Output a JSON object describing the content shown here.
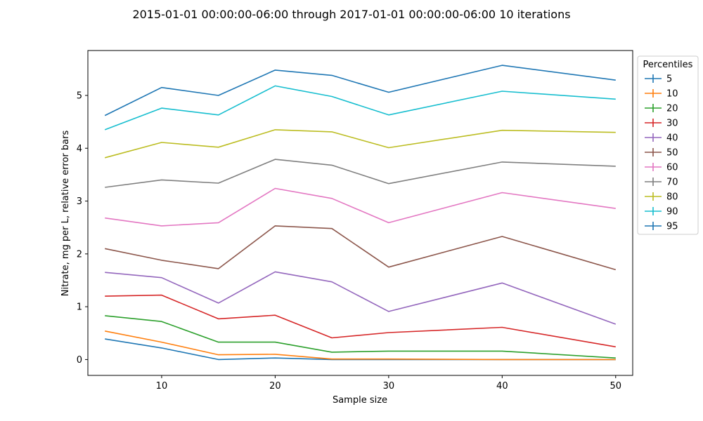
{
  "chart_data": {
    "type": "line",
    "title": "2015-01-01 00:00:00-06:00 through 2017-01-01 00:00:00-06:00 10 iterations",
    "xlabel": "Sample size",
    "ylabel": "Nitrate, mg per L, relative error bars",
    "x": [
      5,
      10,
      15,
      20,
      25,
      30,
      40,
      50
    ],
    "xlim": [
      3.5,
      51.5
    ],
    "ylim": [
      -0.3,
      5.85
    ],
    "x_ticks": [
      10,
      20,
      30,
      40,
      50
    ],
    "y_ticks": [
      0,
      1,
      2,
      3,
      4,
      5
    ],
    "grid": false,
    "legend": {
      "title": "Percentiles",
      "placement": "outside-right"
    },
    "series": [
      {
        "name": "5",
        "color": "#1f77b4",
        "values": [
          0.39,
          0.22,
          0.0,
          0.03,
          0.0,
          0.0,
          0.0,
          0.0
        ]
      },
      {
        "name": "10",
        "color": "#ff7f0e",
        "values": [
          0.54,
          0.33,
          0.09,
          0.1,
          0.01,
          0.01,
          0.0,
          0.0
        ]
      },
      {
        "name": "20",
        "color": "#2ca02c",
        "values": [
          0.83,
          0.72,
          0.33,
          0.33,
          0.14,
          0.16,
          0.16,
          0.03
        ]
      },
      {
        "name": "30",
        "color": "#d62728",
        "values": [
          1.2,
          1.22,
          0.77,
          0.84,
          0.41,
          0.51,
          0.61,
          0.24
        ]
      },
      {
        "name": "40",
        "color": "#9467bd",
        "values": [
          1.65,
          1.55,
          1.07,
          1.66,
          1.47,
          0.91,
          1.45,
          0.67
        ]
      },
      {
        "name": "50",
        "color": "#8c564b",
        "values": [
          2.1,
          1.88,
          1.72,
          2.53,
          2.48,
          1.75,
          2.33,
          1.7
        ]
      },
      {
        "name": "60",
        "color": "#e377c2",
        "values": [
          2.68,
          2.53,
          2.59,
          3.24,
          3.05,
          2.59,
          3.16,
          2.86
        ]
      },
      {
        "name": "70",
        "color": "#7f7f7f",
        "values": [
          3.26,
          3.4,
          3.34,
          3.79,
          3.68,
          3.33,
          3.74,
          3.66
        ]
      },
      {
        "name": "80",
        "color": "#bcbd22",
        "values": [
          3.82,
          4.11,
          4.02,
          4.35,
          4.31,
          4.01,
          4.34,
          4.3
        ]
      },
      {
        "name": "90",
        "color": "#17becf",
        "values": [
          4.35,
          4.76,
          4.63,
          5.18,
          4.98,
          4.63,
          5.08,
          4.93
        ]
      },
      {
        "name": "95",
        "color": "#1f77b4",
        "values": [
          4.62,
          5.15,
          5.0,
          5.48,
          5.38,
          5.06,
          5.57,
          5.29
        ]
      }
    ]
  }
}
